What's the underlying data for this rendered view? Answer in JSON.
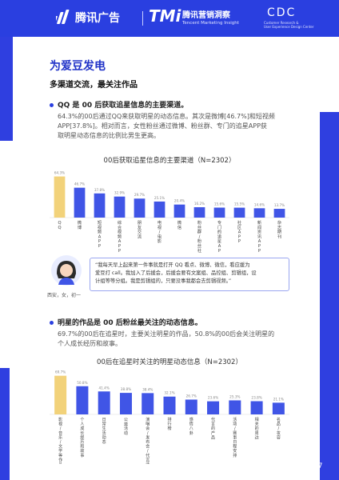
{
  "header": {
    "brand1": "腾讯广告",
    "brand2_mark": "TMi",
    "brand2_name": "腾讯营销洞察",
    "brand2_sub": "Tencent Marketing Insight",
    "brand3_mark": "CDC",
    "brand3_sub1": "Customer Research &",
    "brand3_sub2": "User Experience Design Center"
  },
  "section": {
    "title": "为爱豆发电",
    "subtitle": "多渠道交流，最关注作品"
  },
  "point1": {
    "heading": "QQ 是 00 后获取追星信息的主要渠道。",
    "lines": [
      "64.3%的00后通过QQ来获取明星的动态信息。其次是微博[46.7%]和短视频",
      "APP[37.8%]。相对而言，女性粉丝通过微博、粉丝群、专门的追星APP获",
      "取明星动态信息的比例比男生更高。"
    ]
  },
  "quote": {
    "lines": [
      "“我每天早上起来第一件事就是打开 QQ 看点、微博、微信，看应援为",
      "爱豆打 call。我加入了后援会，后援会要有文案组、品控组、剪辑组，设",
      "计组等等分组。我是剪辑组的，只要没事我都会去剪辑视频。”"
    ],
    "caption": "西安，女，初一"
  },
  "point2": {
    "heading": "明星的作品是 00 后粉丝最关注的动态信息。",
    "lines": [
      "69.7%的00后在追星时，主要关注明星的作品，50.8%的00后会关注明星的",
      "个人成长经历和故事。"
    ]
  },
  "chart_data": [
    {
      "type": "bar",
      "title": "00后获取追星信息的主要渠道（N=2302）",
      "categories": [
        "QQ",
        "微博",
        "短视频APP",
        "综合视频APP",
        "朋友交流",
        "电视/电影",
        "微信",
        "粉丝群/粉丝社区",
        "专门的追星APP/网站",
        "社区APP",
        "新闻资讯APP",
        "杂志期刊"
      ],
      "values": [
        64.3,
        46.7,
        37.8,
        32.9,
        29.7,
        25.1,
        20.4,
        16.2,
        15.6,
        15.5,
        14.6,
        13.7
      ],
      "labels": [
        "64.3%",
        "46.7%",
        "37.8%",
        "32.9%",
        "29.7%",
        "25.1%",
        "20.4%",
        "16.2%",
        "15.6%",
        "15.5%",
        "14.6%",
        "13.7%"
      ],
      "ylim": [
        0,
        70
      ],
      "colors": {
        "first": "#f2d27a",
        "rest": "#4055e6"
      }
    },
    {
      "type": "bar",
      "title": "00后在追星时关注的明星动态信息（N=2302）",
      "categories": [
        "影视/音乐/文学等作品",
        "个人成长经历和故事",
        "日常生活动态",
        "公益活动",
        "演唱会/发布会/代言活动",
        "排行榜",
        "感情八卦",
        "代言的产品",
        "活动/赛事日程安排",
        "相关的周边",
        "名品/妆容"
      ],
      "values": [
        69.7,
        50.8,
        41.4,
        38.8,
        38.4,
        32.1,
        26.7,
        23.6,
        25.3,
        23.8,
        21.1
      ],
      "labels": [
        "69.7%",
        "50.8%",
        "41.4%",
        "38.8%",
        "38.4%",
        "32.1%",
        "26.7%",
        "23.6%",
        "25.3%",
        "23.8%",
        "21.1%"
      ],
      "ylim": [
        0,
        75
      ],
      "colors": {
        "first": "#f2d27a",
        "rest": "#4055e6"
      }
    }
  ],
  "page": {
    "number": "37"
  }
}
